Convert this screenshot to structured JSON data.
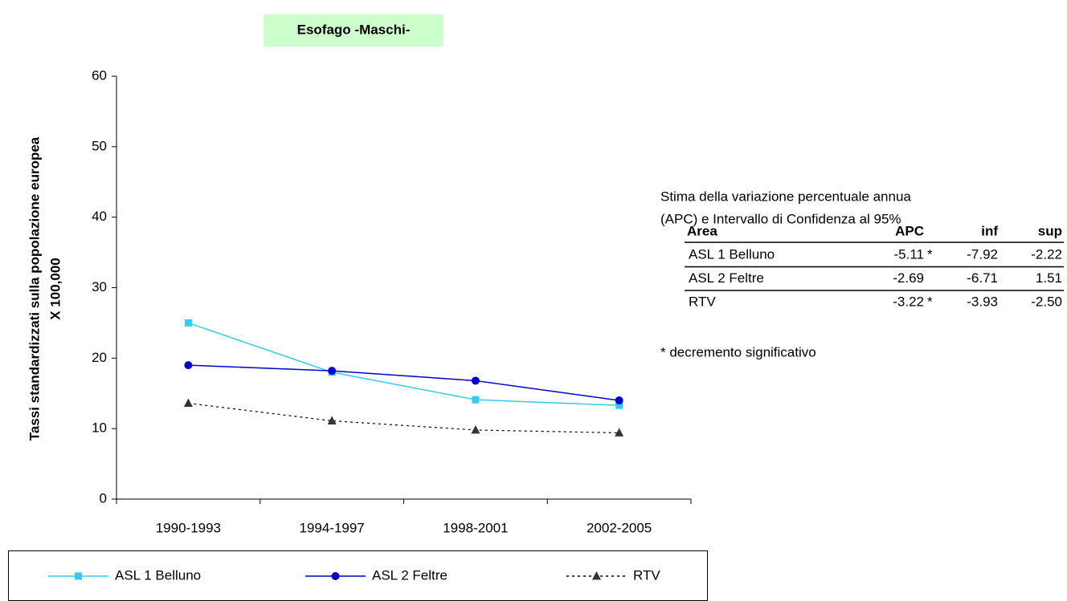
{
  "chart_data": {
    "type": "line",
    "title": "Esofago -Maschi-",
    "ylabel": [
      "Tassi standardizzati sulla popolazione europea",
      "X 100,000"
    ],
    "categories": [
      "1990-1993",
      "1994-1997",
      "1998-2001",
      "2002-2005"
    ],
    "series": [
      {
        "name": "ASL 1 Belluno",
        "color": "#33ccf0",
        "marker": "square",
        "dash": "solid",
        "values": [
          25.0,
          18.0,
          14.1,
          13.3
        ]
      },
      {
        "name": "ASL 2 Feltre",
        "color": "#0000cc",
        "marker": "circle",
        "dash": "solid",
        "values": [
          19.0,
          18.2,
          16.8,
          14.0
        ]
      },
      {
        "name": "RTV",
        "color": "#333333",
        "marker": "triangle",
        "dash": "dotted",
        "values": [
          13.6,
          11.1,
          9.8,
          9.4
        ]
      }
    ],
    "ylim": [
      0,
      60
    ],
    "yticks": [
      0,
      10,
      20,
      30,
      40,
      50,
      60
    ],
    "grid": false,
    "legend": "bottom"
  },
  "apc_table": {
    "caption": [
      "Stima della variazione percentuale annua",
      "(APC) e Intervallo di Confidenza al 95%"
    ],
    "header": [
      "Area",
      "APC",
      "inf",
      "sup"
    ],
    "rows": [
      [
        "ASL 1 Belluno",
        "-5.11",
        "*",
        "-7.92",
        "-2.22"
      ],
      [
        "ASL 2 Feltre",
        "-2.69",
        "",
        "-6.71",
        "1.51"
      ],
      [
        "RTV",
        "-3.22",
        "*",
        "-3.93",
        "-2.50"
      ]
    ],
    "footnote": "* decremento significativo"
  }
}
